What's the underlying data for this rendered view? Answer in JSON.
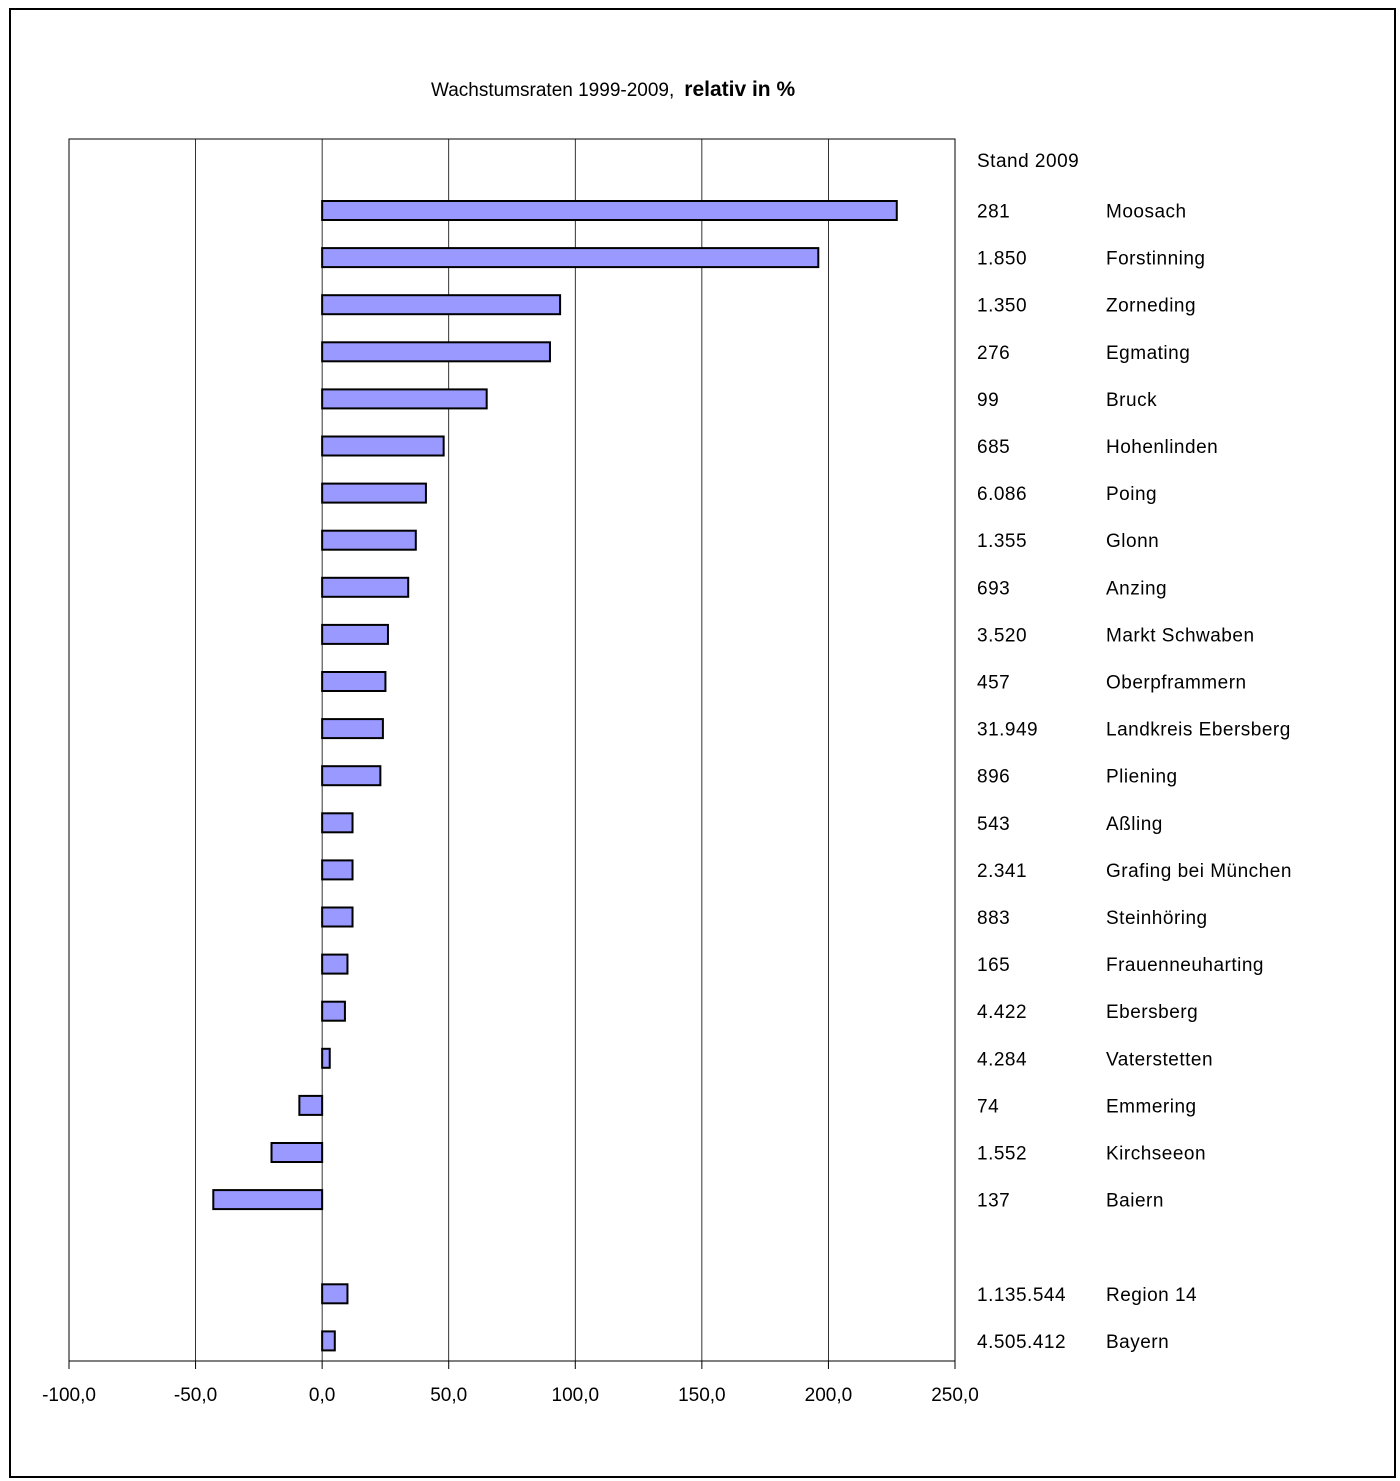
{
  "chart_data": {
    "type": "bar",
    "orientation": "horizontal",
    "title": "Wachstumsraten 1999-2009,",
    "title_emphasis": "relativ in %",
    "side_header": "Stand 2009",
    "xlim": [
      -100,
      250
    ],
    "x_ticks": [
      -100,
      -50,
      0,
      50,
      100,
      150,
      200,
      250
    ],
    "x_tick_labels": [
      "-100,0",
      "-50,0",
      "0,0",
      "50,0",
      "100,0",
      "150,0",
      "200,0",
      "250,0"
    ],
    "grid": "vertical",
    "bar_color": "#9999ff",
    "bar_border_color": "#000000",
    "rows": [
      {
        "name": "Moosach",
        "population": "281",
        "value": 227
      },
      {
        "name": "Forstinning",
        "population": "1.850",
        "value": 196
      },
      {
        "name": "Zorneding",
        "population": "1.350",
        "value": 94
      },
      {
        "name": "Egmating",
        "population": "276",
        "value": 90
      },
      {
        "name": "Bruck",
        "population": "99",
        "value": 65
      },
      {
        "name": "Hohenlinden",
        "population": "685",
        "value": 48
      },
      {
        "name": "Poing",
        "population": "6.086",
        "value": 41
      },
      {
        "name": "Glonn",
        "population": "1.355",
        "value": 37
      },
      {
        "name": "Anzing",
        "population": "693",
        "value": 34
      },
      {
        "name": "Markt Schwaben",
        "population": "3.520",
        "value": 26
      },
      {
        "name": "Oberpframmern",
        "population": "457",
        "value": 25
      },
      {
        "name": "Landkreis Ebersberg",
        "population": "31.949",
        "value": 24
      },
      {
        "name": "Pliening",
        "population": "896",
        "value": 23
      },
      {
        "name": "Aßling",
        "population": "543",
        "value": 12
      },
      {
        "name": "Grafing bei München",
        "population": "2.341",
        "value": 12
      },
      {
        "name": "Steinhöring",
        "population": "883",
        "value": 12
      },
      {
        "name": "Frauenneuharting",
        "population": "165",
        "value": 10
      },
      {
        "name": "Ebersberg",
        "population": "4.422",
        "value": 9
      },
      {
        "name": "Vaterstetten",
        "population": "4.284",
        "value": 3
      },
      {
        "name": "Emmering",
        "population": "74",
        "value": -9
      },
      {
        "name": "Kirchseeon",
        "population": "1.552",
        "value": -20
      },
      {
        "name": "Baiern",
        "population": "137",
        "value": -43
      },
      {
        "name": "",
        "population": "",
        "value": null
      },
      {
        "name": "Region 14",
        "population": "1.135.544",
        "value": 10
      },
      {
        "name": "Bayern",
        "population": "4.505.412",
        "value": 5
      }
    ]
  }
}
